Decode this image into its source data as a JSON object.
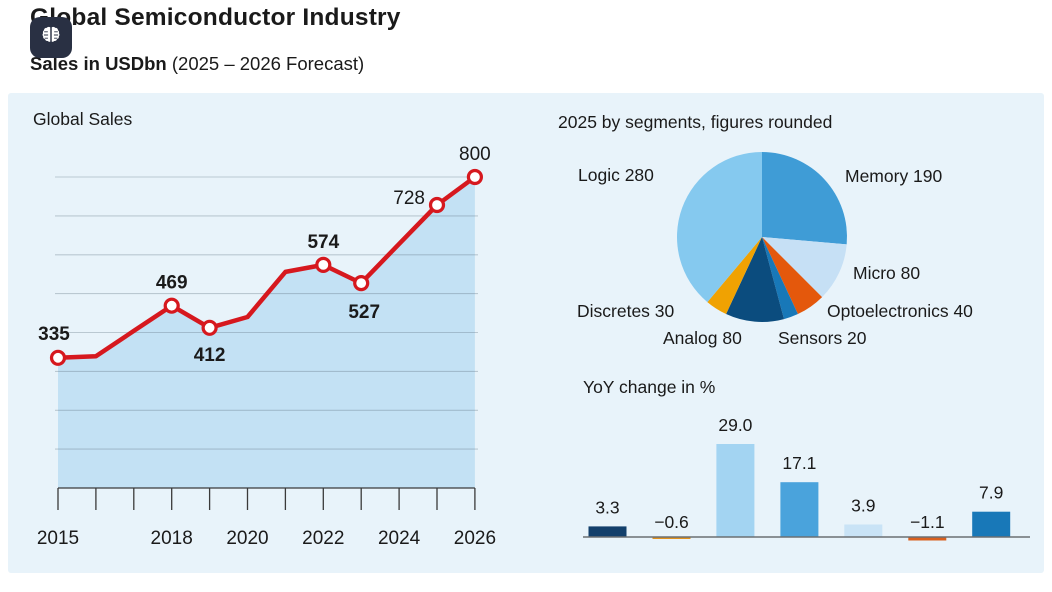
{
  "header": {
    "title": "Global Semiconductor Industry",
    "subtitle_bold": "Sales in USDbn",
    "subtitle_rest": "(2025 – 2026 Forecast)",
    "badge_icon": "brain-icon"
  },
  "colors": {
    "page_bg": "#ffffff",
    "panel_bg": "#e8f3fa",
    "badge_bg": "#293043",
    "text": "#1a1a1a",
    "line_red": "#d6181e",
    "area_fill": "#c3e1f4",
    "marker_fill": "#ffffff",
    "grid": "rgba(90,110,125,0.32)",
    "axis": "#3a3a3a"
  },
  "chart_data": [
    {
      "type": "area",
      "title": "Global Sales",
      "x": [
        2015,
        2016,
        2017,
        2018,
        2019,
        2020,
        2021,
        2022,
        2023,
        2024,
        2025,
        2026
      ],
      "values": [
        335,
        339,
        404,
        469,
        412,
        440,
        556,
        574,
        527,
        628,
        728,
        800
      ],
      "note": "values for unlabeled years estimated from line position",
      "labeled_points": [
        {
          "x": 2015,
          "label": "335",
          "bold": true,
          "placement": "above-left"
        },
        {
          "x": 2018,
          "label": "469",
          "bold": true,
          "placement": "above"
        },
        {
          "x": 2019,
          "label": "412",
          "bold": true,
          "placement": "below"
        },
        {
          "x": 2022,
          "label": "574",
          "bold": true,
          "placement": "above"
        },
        {
          "x": 2023,
          "label": "527",
          "bold": true,
          "placement": "below-right"
        },
        {
          "x": 2025,
          "label": "728",
          "bold": false,
          "placement": "left"
        },
        {
          "x": 2026,
          "label": "800",
          "bold": false,
          "placement": "above"
        }
      ],
      "marker_years": [
        2015,
        2018,
        2019,
        2022,
        2023,
        2025,
        2026
      ],
      "x_tick_labels": [
        "2015",
        "2018",
        "2020",
        "2022",
        "2024",
        "2026"
      ],
      "ylim": [
        0,
        800
      ],
      "grid_step": 100,
      "grid": true,
      "legend": false
    },
    {
      "type": "pie",
      "title": "2025 by segments, figures rounded",
      "start_angle_deg_from_north": 0,
      "direction": "clockwise",
      "segments": [
        {
          "name": "Memory",
          "value": 190,
          "color": "#3f9cd6"
        },
        {
          "name": "Micro",
          "value": 80,
          "color": "#c6e0f5"
        },
        {
          "name": "Optoelectronics",
          "value": 40,
          "color": "#e4580c"
        },
        {
          "name": "Sensors",
          "value": 20,
          "color": "#1878b8"
        },
        {
          "name": "Analog",
          "value": 80,
          "color": "#0b4c7e"
        },
        {
          "name": "Discretes",
          "value": 30,
          "color": "#f0a202"
        },
        {
          "name": "Logic",
          "value": 280,
          "color": "#85c9ef"
        }
      ]
    },
    {
      "type": "bar",
      "title": "YoY change in %",
      "values": [
        3.3,
        -0.6,
        29.0,
        17.1,
        3.9,
        -1.1,
        7.9
      ],
      "labels": [
        "3.3",
        "−0.6",
        "29.0",
        "17.1",
        "3.9",
        "−1.1",
        "7.9"
      ],
      "colors": [
        "#123f6b",
        "#e2921e",
        "#a3d4f2",
        "#4aa3dc",
        "#c9e3f6",
        "#d95f1e",
        "#1878b8"
      ],
      "baseline": 0,
      "grid": false,
      "legend": false
    }
  ]
}
